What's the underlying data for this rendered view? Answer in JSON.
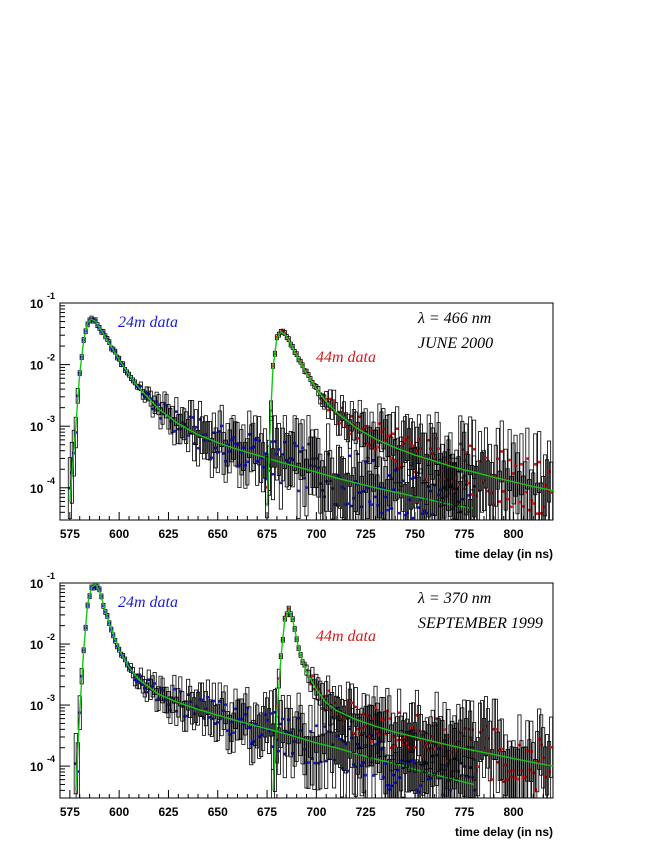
{
  "chart_data": [
    {
      "type": "line",
      "yscale": "log",
      "xlabel": "time delay (in ns)",
      "ylabel": "",
      "xlim": [
        570,
        820
      ],
      "ylim": [
        3e-05,
        0.1
      ],
      "xticks": [
        "575",
        "600",
        "625",
        "650",
        "675",
        "700",
        "725",
        "750",
        "775",
        "800"
      ],
      "yticks": [
        {
          "base": "10",
          "exp": "-1"
        },
        {
          "base": "10",
          "exp": "-2"
        },
        {
          "base": "10",
          "exp": "-3"
        },
        {
          "base": "10",
          "exp": "-4"
        }
      ],
      "annotations": {
        "line1": "λ = 466 nm",
        "line2": "JUNE 2000"
      },
      "series": [
        {
          "name": "24m data",
          "color": "#1a1ad6",
          "x": [
            575,
            578,
            580,
            582,
            584,
            586,
            588,
            590,
            595,
            600,
            605,
            610,
            620,
            630,
            640,
            650,
            660,
            670,
            680,
            690,
            700,
            710,
            720,
            730,
            740,
            750,
            760,
            770,
            780
          ],
          "y": [
            6e-05,
            0.001,
            0.007,
            0.025,
            0.048,
            0.055,
            0.05,
            0.04,
            0.022,
            0.012,
            0.0068,
            0.0042,
            0.0019,
            0.0011,
            0.00073,
            0.00054,
            0.00042,
            0.00034,
            0.00027,
            0.00022,
            0.00018,
            0.000145,
            0.00012,
            0.0001,
            8.5e-05,
            7.2e-05,
            6.1e-05,
            5.2e-05,
            4.6e-05
          ]
        },
        {
          "name": "44m data",
          "color": "#d61a1a",
          "x": [
            675,
            677,
            678,
            680,
            682,
            684,
            686,
            690,
            695,
            700,
            705,
            710,
            720,
            730,
            740,
            750,
            760,
            770,
            780,
            790,
            800,
            810,
            820
          ],
          "y": [
            5e-05,
            0.002,
            0.009,
            0.027,
            0.034,
            0.031,
            0.025,
            0.014,
            0.0072,
            0.0041,
            0.0025,
            0.0017,
            0.00095,
            0.00062,
            0.00045,
            0.00034,
            0.00027,
            0.000215,
            0.00018,
            0.000148,
            0.000125,
            0.000105,
            9e-05
          ]
        }
      ]
    },
    {
      "type": "line",
      "yscale": "log",
      "xlabel": "time delay (in ns)",
      "ylabel": "",
      "xlim": [
        570,
        820
      ],
      "ylim": [
        3e-05,
        0.1
      ],
      "xticks": [
        "575",
        "600",
        "625",
        "650",
        "675",
        "700",
        "725",
        "750",
        "775",
        "800"
      ],
      "yticks": [
        {
          "base": "10",
          "exp": "-1"
        },
        {
          "base": "10",
          "exp": "-2"
        },
        {
          "base": "10",
          "exp": "-3"
        },
        {
          "base": "10",
          "exp": "-4"
        }
      ],
      "annotations": {
        "line1": "λ = 370 nm",
        "line2": "SEPTEMBER 1999"
      },
      "series": [
        {
          "name": "24m data",
          "color": "#1a1ad6",
          "x": [
            578,
            580,
            582,
            584,
            586,
            588,
            590,
            592,
            595,
            600,
            605,
            610,
            620,
            630,
            640,
            650,
            660,
            670,
            680,
            690,
            700,
            710,
            720,
            730,
            740,
            750,
            760,
            770,
            780
          ],
          "y": [
            4e-05,
            0.0008,
            0.008,
            0.045,
            0.085,
            0.095,
            0.075,
            0.045,
            0.022,
            0.008,
            0.0042,
            0.0026,
            0.0015,
            0.0011,
            0.00085,
            0.00068,
            0.00055,
            0.00045,
            0.00037,
            0.0003,
            0.00024,
            0.0002,
            0.00016,
            0.00013,
            0.00011,
            8.8e-05,
            7.2e-05,
            6e-05,
            5e-05
          ]
        },
        {
          "name": "44m data",
          "color": "#d61a1a",
          "x": [
            678,
            680,
            682,
            684,
            686,
            688,
            690,
            692,
            695,
            700,
            705,
            710,
            720,
            730,
            740,
            750,
            760,
            770,
            780,
            790,
            800,
            810,
            820
          ],
          "y": [
            4e-05,
            0.0007,
            0.006,
            0.025,
            0.036,
            0.025,
            0.012,
            0.0065,
            0.0035,
            0.0018,
            0.0011,
            0.00082,
            0.00058,
            0.00045,
            0.00036,
            0.0003,
            0.00025,
            0.00021,
            0.00018,
            0.000155,
            0.000133,
            0.000115,
            0.0001
          ]
        }
      ]
    }
  ]
}
